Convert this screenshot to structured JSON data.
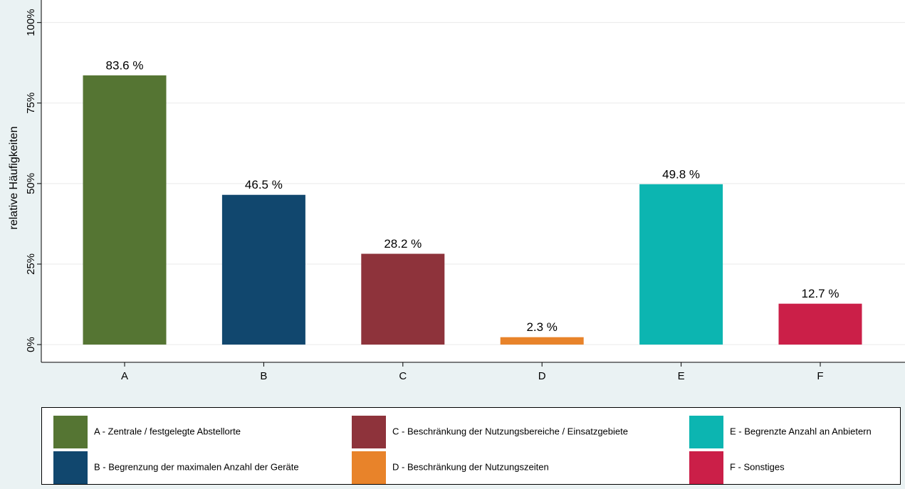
{
  "chart_data": {
    "type": "bar",
    "y_label": "relative Häufigkeiten",
    "categories": [
      "A",
      "B",
      "C",
      "D",
      "E",
      "F"
    ],
    "values": [
      83.6,
      46.5,
      28.2,
      2.3,
      49.8,
      12.7
    ],
    "value_labels": [
      "83.6 %",
      "46.5 %",
      "28.2 %",
      "2.3 %",
      "49.8 %",
      "12.7 %"
    ],
    "colors": [
      "#557533",
      "#11476e",
      "#8e333b",
      "#e8832a",
      "#0cb5b1",
      "#cb1f48"
    ],
    "legend": [
      "A - Zentrale / festgelegte Abstellorte",
      "B - Begrenzung der maximalen Anzahl der Geräte",
      "C - Beschränkung der Nutzungsbereiche / Einsatzgebiete",
      "D - Beschränkung der Nutzungszeiten",
      "E - Begrenzte Anzahl an Anbietern",
      "F - Sonstiges"
    ],
    "ylim": [
      -5.5,
      107
    ],
    "yticks": [
      {
        "value": 0,
        "label": "0%"
      },
      {
        "value": 25,
        "label": "25%"
      },
      {
        "value": 50,
        "label": "50%"
      },
      {
        "value": 75,
        "label": "75%"
      },
      {
        "value": 100,
        "label": "100%"
      }
    ],
    "grid": true
  }
}
